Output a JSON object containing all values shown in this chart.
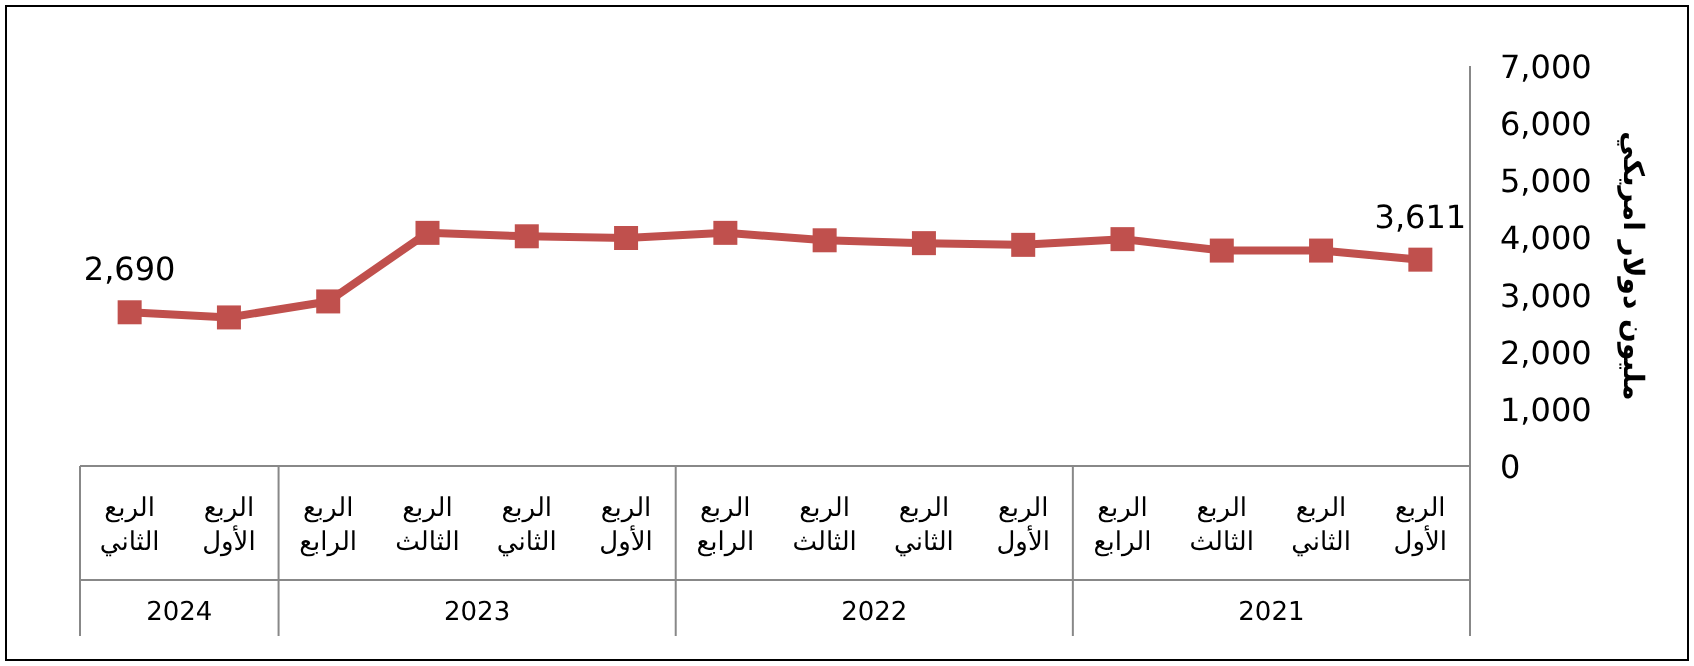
{
  "chart_data": {
    "type": "line",
    "ylabel": "مليون دولار امريكي",
    "categories": [
      "الربع الثاني",
      "الربع الأول",
      "الربع الرابع",
      "الربع الثالث",
      "الربع الثاني",
      "الربع الأول",
      "الربع الرابع",
      "الربع الثالث",
      "الربع الثاني",
      "الربع الأول",
      "الربع الرابع",
      "الربع الثالث",
      "الربع الثاني",
      "الربع الأول"
    ],
    "series": [
      {
        "color": "#c0504d",
        "values": [
          2690,
          2600,
          2880,
          4080,
          4020,
          3990,
          4080,
          3950,
          3900,
          3870,
          3970,
          3770,
          3770,
          3611
        ],
        "value_labels": [
          "2,690",
          null,
          null,
          null,
          null,
          null,
          null,
          null,
          null,
          null,
          null,
          null,
          null,
          "3,611"
        ]
      }
    ],
    "ylim": [
      0,
      7000
    ],
    "yticks": [
      0,
      {
        "value": 1000,
        "label": "1,000"
      },
      {
        "value": 2000,
        "label": "2,000"
      },
      {
        "value": 3000,
        "label": "3,000"
      },
      {
        "value": 4000,
        "label": "4,000"
      },
      {
        "value": 5000,
        "label": "5,000"
      },
      {
        "value": 6000,
        "label": "6,000"
      },
      {
        "value": 7000,
        "label": "7,000"
      }
    ],
    "annotations": [
      "2024",
      "2023",
      "2022",
      "2021"
    ],
    "marker": "square",
    "line_style": "solid"
  }
}
